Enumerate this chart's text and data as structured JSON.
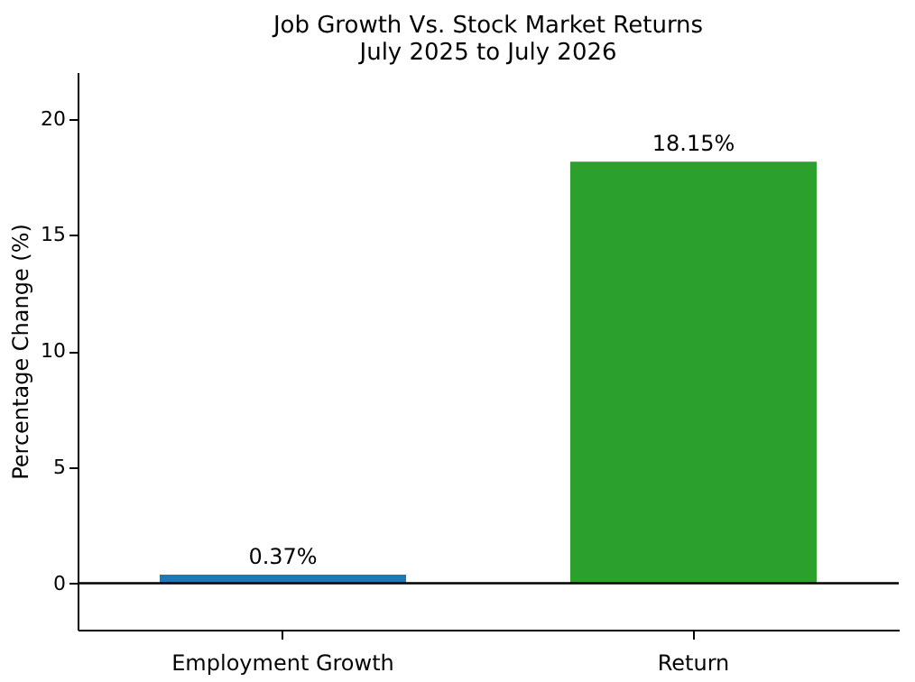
{
  "chart_data": {
    "type": "bar",
    "title": "Job Growth Vs. Stock Market Returns",
    "subtitle": "July 2025 to July 2026",
    "ylabel": "Percentage Change (%)",
    "categories": [
      "Employment Growth",
      "Return"
    ],
    "values": [
      0.37,
      18.15
    ],
    "colors": [
      "#1f77b4",
      "#2ca02c"
    ],
    "value_labels": [
      "0.37%",
      "18.15%"
    ],
    "ylim": [
      -2,
      22
    ],
    "yticks": [
      0,
      5,
      10,
      15,
      20
    ],
    "grid": false,
    "ref_lines": [
      {
        "axis": "y",
        "value": 0,
        "color": "#000000"
      }
    ]
  }
}
